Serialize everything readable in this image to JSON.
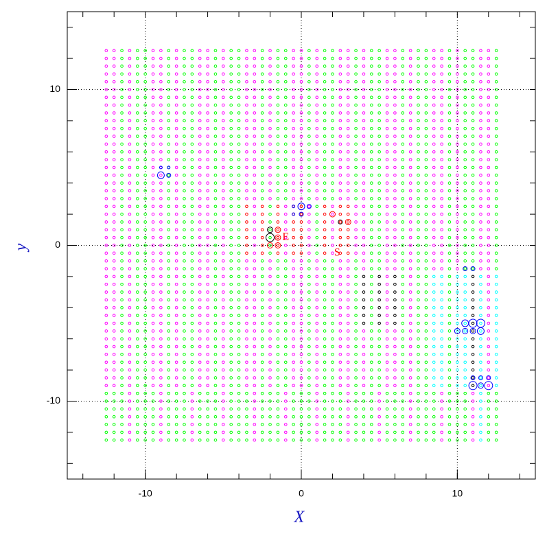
{
  "chart_data": {
    "type": "scatter",
    "xlabel": "X",
    "ylabel": "y",
    "xlim": [
      -15,
      15
    ],
    "ylim": [
      -15,
      15
    ],
    "xticks": [
      -10,
      0,
      10
    ],
    "yticks": [
      -10,
      0,
      10
    ],
    "xminor": [
      -14,
      -12,
      -10,
      -8,
      -6,
      -4,
      -2,
      0,
      2,
      4,
      6,
      8,
      10,
      12,
      14
    ],
    "yminor": [
      -14,
      -12,
      -10,
      -8,
      -6,
      -4,
      -2,
      0,
      2,
      4,
      6,
      8,
      10,
      12,
      14
    ],
    "grid": true,
    "grid_points": {
      "x": [
        -12.5,
        -12,
        -11.5,
        -11,
        -10.5,
        -10,
        -9.5,
        -9,
        -8.5,
        -8,
        -7.5,
        -7,
        -6.5,
        -6,
        -5.5,
        -5,
        -4.5,
        -4,
        -3.5,
        -3,
        -2.5,
        -2,
        -1.5,
        -1,
        -0.5,
        0,
        0.5,
        1,
        1.5,
        2,
        2.5,
        3,
        3.5,
        4,
        4.5,
        5,
        5.5,
        6,
        6.5,
        7,
        7.5,
        8,
        8.5,
        9,
        9.5,
        10,
        10.5,
        11,
        11.5,
        12,
        12.5
      ],
      "y": [
        12.5,
        12,
        11.5,
        11,
        10.5,
        10,
        9.5,
        9,
        8.5,
        8,
        7.5,
        7,
        6.5,
        6,
        5.5,
        5,
        4.5,
        4,
        3.5,
        3,
        2.5,
        2,
        1.5,
        1,
        0.5,
        0,
        -0.5,
        -1,
        -1.5,
        -2,
        -2.5,
        -3,
        -3.5,
        -4,
        -4.5,
        -5,
        -5.5,
        -6,
        -6.5,
        -7,
        -7.5,
        -8,
        -8.5,
        -9,
        -9.5,
        -10,
        -10.5,
        -11,
        -11.5,
        -12,
        -12.5
      ],
      "palette": {
        "m": "#ff00ff",
        "g": "#00ff00",
        "c": "#00ffff",
        "r": "#ff0000",
        "k": "#000000"
      },
      "colors": [
        "mmgmggmmgmggmmgmggmmgmggmmgmggmmgmggmmgmggmmgmggmmg",
        "mmgmggmmgmggmmgmggmmgmggmmgmggmmgmggmmgmggmmgmggmmg",
        "mmgmggmmgmggmmgmggmmgmggmmgmggmmgmggmmgmggmmgmggmmg",
        "mmgmggmmgmggmmgmggmmgmggmmgmggmmgmggmmgmggmmgmggmmg",
        "mmgmggmmgmggmmgmggmmgmggmmgmggmmgmggmmgmggmmgmggmmg",
        "mmgmggmmgmggmmgmggmmgmggmmgmggmmgmggmmgmggmmgmggmmg",
        "mmgmggmmgmggmmgmggmmgmggmmgmggmmgmggmmgmggmmgmggmmg",
        "mmgmggmmgmggmmgmggmmgmggmmgmggmmgmggmmgmggmmgmggmmg",
        "mmgmggmmgmggmmgmggmmgmggmmgmggmmgmggmmgmggmmgmggmmg",
        "mmgmggmmgmggmmgmggmmgmggmmgmggmmgmggmmgmggmmgmggmmg",
        "mmgmggmmgmggmmgmggmmgmggmmgmggmmgmggmmgmggmmgmggmmg",
        "mmgmggmmgmggmmgmggmmgmggmmgmggmmgmggmmgmggmmgmggmmg",
        "mmgmggmmgmggmmgmggmmgmggmmgmggmmgmggmmgmggmmgmggmmg",
        "mmgmggmmgmggmmgmggmmgmggmmgmggmmgmggmmgmggmmgmggmmg",
        "mmgmggmmgmggmmgmggmmgmggmmgmggmmgmggmmgmggmmgmggmmg",
        "mmgmggmmgmggmmgmggmmgmggmmgmggmmgmggmmgmggmmgmggmmg",
        "mmgmggmmgmggmmgmggmmgmggmmgmggmmgmggmmgmggmmgmggmmg",
        "mmgmggmmgmggmmgmggmmgmggmmgmggmmgmggmmgmggmmgmggmmg",
        "mmgmggmmgmggmmgmggmmgmggmmgmggmmgmggmmgmggmmgmggmmg",
        "mmgmggmmgmggmmgmggmmgmggmmgmggmmgmggmmgmggmmgmggmmg",
        "mmgmggmmgmggmmgmggrmrgrmrrmgrmrrmmggmmgmggmmgmggmmg",
        "mmgmggmmgmggmmgmggrmrgrmrrmgrmrrmmggmmgmggmmgmggmmg",
        "mmgmggmmgmggmmgmggrmrgrmrrmgrmrrmmggmmgmggmmgmggmmg",
        "mmgmggmmgmggmmgmggrmrgrmrrmgrmrrmmggmmgmggmmgmggmmg",
        "mmgmggmmgmggmmgmggrmrgrmrrmgrmrrmmggmmgmggmmgmggmmg",
        "mmgmggmmgmggmmgmggrmrgrmrrmgrmrrmmggmmgmggmmgmggmmg",
        "mmgmggmmgmggmmgmggrmrgrmrrmgrmrrmmggmmgmggmmgmggmmg",
        "mmgmggmmgmggmmgmggmmgmggmmgmggmmgmggmmgmggmmgmggmmg",
        "mmgmggmmgmggmmgmggmmgmggmmgmggmmgmggmmgmggmmgmggmmg",
        "mmgmggmmgmggmmgmggmmgmggmmgmggmmgkgkmkgmggccgcckcmc",
        "mmgmggmmgmggmmgmggmmgmggmmgmggmmgkgkmkgmggccgcckcmc",
        "mmgmggmmgmggmmgmggmmgmggmmgmggmmgkgkmkgmggccgcckcmc",
        "mmgmggmmgmggmmgmggmmgmggmmgmggmmgkgkmkgmggccgcckcmc",
        "mmgmggmmgmggmmgmggmmgmggmmgmggmmgkgkmkgmggccgcckcmc",
        "mmgmggmmgmggmmgmggmmgmggmmgmggmmgkgkmkgmggccgcckcmc",
        "mmgmggmmgmggmmgmggmmgmggmmgmggmmgkgkmkgmggccgcckcmc",
        "mmgmggmmgmggmmgmggmmgmggmmgmggmmgmggmmgmggccgcckcmc",
        "mmgmggmmgmggmmgmggmmgmggmmgmggmmgmggmmgmggccgcckcmc",
        "mmgmggmmgmggmmgmggmmgmggmmgmggmmgmggmmgmggccgcckcmc",
        "mmgmggmmgmggmmgmggmmgmggmmgmggmmgmggmmgmggccgcckcmc",
        "mmgmggmmgmggmmgmggmmgmggmmgmggmmgmggmmgmggccgcckcmc",
        "mmgmggmmgmggmmgmggmmgmggmmgmggmmgmggmmgmggccgcckcmc",
        "mmgmggmmgmggmmgmggmmgmggmmgmggmmgmggmmgmggccgcckcmc",
        "mmgmggmmgmggmmgmggmmgmggmmgmggmmgmggmmgmggccgcckcmc",
        "gggmgggmgggmgggmgggmgggmgggmgggmgggmgggmgggmgggmcgg",
        "gggmgggmgggmgggmgggmgggmgggmgggmgggmgggmgggmgggmcgg",
        "gggmgggmgggmgggmgggmgggmgggmgggmgggmgggmgggmgggmcgg",
        "gggmgggmgggmgggmgggmgggmgggmgggmgggmgggmgggmgggmcgg",
        "gggmgggmgggmgggmgggmgggmgggmgggmgggmgggmgggmgggmcgg",
        "gggmgggmgggmgggmgggmgggmgggmgggmgggmgggmgggmgggmcgg",
        "gggmgggmgggmgggmgggmgggmgggmgggmgggmgggmgggmgggmcgg"
      ]
    },
    "highlights": {
      "x": [
        -9,
        -8.5,
        -9,
        -8.5,
        0,
        0,
        -0.5,
        0.5,
        -0.5,
        11,
        10.5,
        11.5,
        11,
        10.5,
        11.5,
        10,
        11,
        12,
        11.5,
        12,
        11,
        11.5,
        10.5,
        11,
        2,
        -2,
        -1.5,
        -1.5,
        -2,
        -2,
        -1.5,
        2.5,
        3
      ],
      "y": [
        4.5,
        4.5,
        5,
        5,
        2.5,
        2,
        2.5,
        2.5,
        2,
        -5,
        -5,
        -5,
        -5.5,
        -5.5,
        -5.5,
        -5.5,
        -9,
        -9,
        -8.5,
        -8.5,
        -8.5,
        -9,
        -1.5,
        -1.5,
        2,
        0.5,
        0.5,
        1,
        1,
        0,
        0,
        1.5,
        1.5
      ],
      "sizes": [
        5,
        3,
        2,
        2,
        5,
        3,
        2,
        3,
        2,
        6,
        5,
        6,
        4,
        4,
        5,
        4,
        6,
        6,
        3,
        3,
        3,
        4,
        3,
        3,
        4,
        6,
        4,
        4,
        4,
        4,
        4,
        3,
        4
      ],
      "colors": [
        "#0000ff",
        "#0000ff",
        "#0000ff",
        "#0000ff",
        "#0000ff",
        "#0000ff",
        "#0000ff",
        "#0000ff",
        "#0000ff",
        "#0000ff",
        "#0000ff",
        "#0000ff",
        "#0000ff",
        "#0000ff",
        "#0000ff",
        "#0000ff",
        "#0000ff",
        "#0000ff",
        "#0000ff",
        "#0000ff",
        "#0000ff",
        "#0000ff",
        "#0000ff",
        "#0000ff",
        "#ff0000",
        "#000000",
        "#ff0000",
        "#ff0000",
        "#000000",
        "#ff0000",
        "#ff0000",
        "#000000",
        "#ff0000"
      ]
    },
    "annotations": [
      {
        "text": "E",
        "x": -1,
        "y": 0.5,
        "color": "#ff0000"
      },
      {
        "text": "S",
        "x": 2.3,
        "y": -0.5,
        "color": "#ff0000"
      }
    ]
  }
}
